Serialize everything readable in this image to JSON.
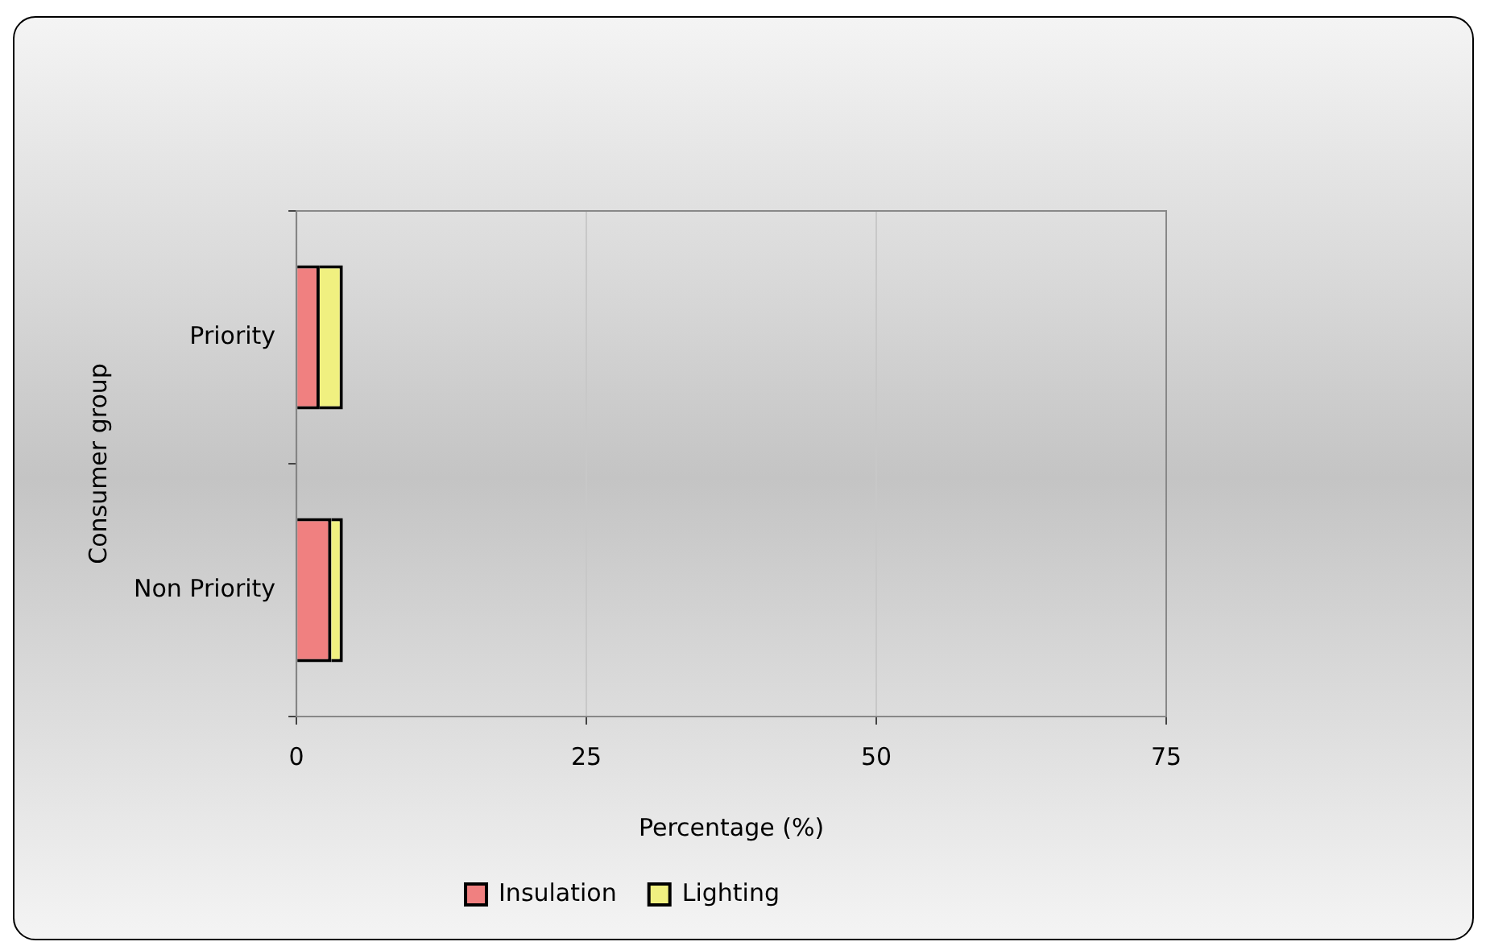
{
  "chart_data": {
    "type": "bar",
    "orientation": "horizontal",
    "stacked": true,
    "categories": [
      "Priority",
      "Non Priority"
    ],
    "series": [
      {
        "name": "Insulation",
        "color": "#f08080",
        "values": [
          2,
          3
        ]
      },
      {
        "name": "Lighting",
        "color": "#f0f080",
        "values": [
          2,
          1
        ]
      }
    ],
    "xlim": [
      0,
      75
    ],
    "xticks": [
      0,
      25,
      50,
      75
    ],
    "xlabel": "Percentage (%)",
    "ylabel": "Consumer group",
    "grid": "x",
    "legend": "bottom"
  }
}
